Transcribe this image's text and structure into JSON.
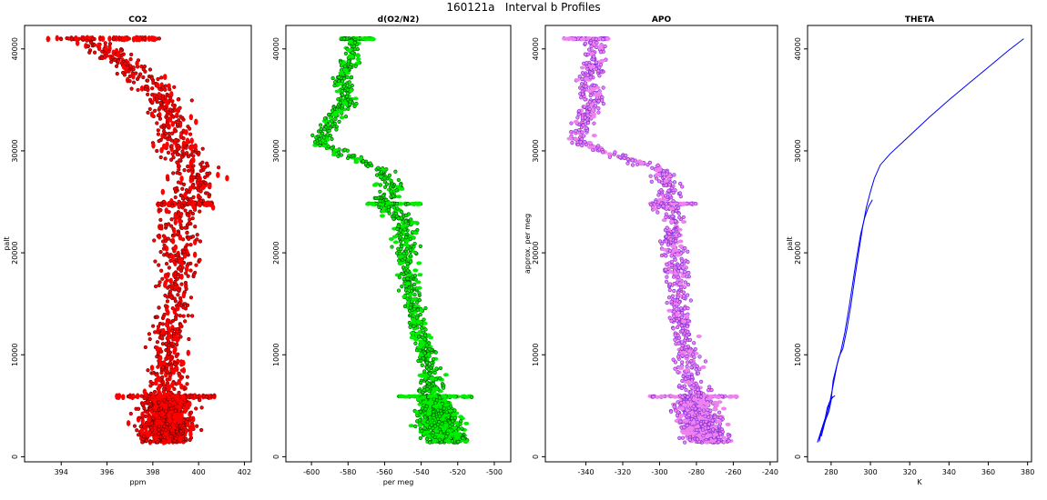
{
  "page_title": "160121a   Interval b Profiles",
  "chart_data": [
    {
      "type": "scatter",
      "title": "CO2",
      "xlabel": "ppm",
      "ylabel": "palt",
      "xlim": [
        392.4,
        402.3
      ],
      "ylim": [
        -500,
        42300
      ],
      "x_ticks": [
        394,
        396,
        398,
        400,
        402
      ],
      "y_ticks": [
        0,
        10000,
        20000,
        30000,
        40000
      ],
      "color": "#ff0000",
      "edge_color": "#6b0000",
      "profile": [
        [
          395.0,
          41000
        ],
        [
          396.5,
          39000
        ],
        [
          397.8,
          37000
        ],
        [
          398.6,
          35000
        ],
        [
          398.8,
          33000
        ],
        [
          399.0,
          31000
        ],
        [
          399.6,
          29000
        ],
        [
          399.8,
          27000
        ],
        [
          399.5,
          25000
        ],
        [
          399.2,
          23000
        ],
        [
          399.0,
          21000
        ],
        [
          399.1,
          19000
        ],
        [
          399.0,
          17000
        ],
        [
          398.9,
          15000
        ],
        [
          398.8,
          13000
        ],
        [
          398.7,
          11000
        ],
        [
          398.6,
          9000
        ],
        [
          398.7,
          7000
        ],
        [
          398.6,
          5000
        ],
        [
          398.6,
          3000
        ],
        [
          398.6,
          1400
        ]
      ],
      "spread": [
        [
          41000,
          0.8
        ],
        [
          35000,
          0.9
        ],
        [
          30000,
          1.0
        ],
        [
          25000,
          1.0
        ],
        [
          15000,
          0.8
        ],
        [
          7000,
          0.8
        ],
        [
          5000,
          1.0
        ],
        [
          1400,
          1.1
        ]
      ],
      "level_lines": [
        {
          "y": 41000,
          "x": [
            393.4,
            398.3
          ]
        },
        {
          "y": 24800,
          "x": [
            398.2,
            400.6
          ]
        },
        {
          "y": 5900,
          "x": [
            396.4,
            400.7
          ]
        }
      ],
      "band": {
        "y": [
          1400,
          6000
        ],
        "n": 900
      }
    },
    {
      "type": "scatter",
      "title": "d(O2/N2)",
      "xlabel": "per meg",
      "ylabel": "",
      "xlim": [
        -614,
        -491
      ],
      "ylim": [
        -500,
        42300
      ],
      "x_ticks": [
        -600,
        -580,
        -560,
        -540,
        -520,
        -500
      ],
      "y_ticks": [
        0,
        10000,
        20000,
        30000,
        40000
      ],
      "color": "#00ee00",
      "edge_color": "#005000",
      "profile": [
        [
          -576,
          41000
        ],
        [
          -578,
          39000
        ],
        [
          -584,
          37000
        ],
        [
          -581,
          35000
        ],
        [
          -588,
          33000
        ],
        [
          -596,
          31000
        ],
        [
          -586,
          30000
        ],
        [
          -560,
          28000
        ],
        [
          -555,
          26000
        ],
        [
          -562,
          25000
        ],
        [
          -548,
          23000
        ],
        [
          -549,
          21000
        ],
        [
          -547,
          19000
        ],
        [
          -546,
          17000
        ],
        [
          -545,
          15000
        ],
        [
          -542,
          13000
        ],
        [
          -539,
          11000
        ],
        [
          -536,
          9000
        ],
        [
          -534,
          7000
        ],
        [
          -532,
          5000
        ],
        [
          -530,
          3000
        ],
        [
          -526,
          1500
        ]
      ],
      "spread": [
        [
          41000,
          5
        ],
        [
          35000,
          5
        ],
        [
          30000,
          6
        ],
        [
          25000,
          7
        ],
        [
          15000,
          5
        ],
        [
          7000,
          6
        ],
        [
          5000,
          9
        ],
        [
          1500,
          12
        ]
      ],
      "level_lines": [
        {
          "y": 41000,
          "x": [
            -584,
            -566
          ]
        },
        {
          "y": 24800,
          "x": [
            -570,
            -540
          ]
        },
        {
          "y": 5900,
          "x": [
            -552,
            -512
          ]
        }
      ],
      "band": {
        "y": [
          1400,
          6000
        ],
        "n": 900
      }
    },
    {
      "type": "scatter",
      "title": "APO",
      "xlabel": "",
      "ylabel": "approx. per meg",
      "xlim": [
        -362,
        -236
      ],
      "ylim": [
        -500,
        42300
      ],
      "x_ticks": [
        -340,
        -320,
        -300,
        -280,
        -260,
        -240
      ],
      "y_ticks": [
        0,
        10000,
        20000,
        30000,
        40000
      ],
      "color": "#ee82ee",
      "edge_color": "#7a2ad8",
      "profile": [
        [
          -335,
          41000
        ],
        [
          -335,
          39000
        ],
        [
          -338,
          37000
        ],
        [
          -336,
          35000
        ],
        [
          -340,
          33000
        ],
        [
          -345,
          31000
        ],
        [
          -330,
          30000
        ],
        [
          -298,
          28000
        ],
        [
          -294,
          26000
        ],
        [
          -298,
          25000
        ],
        [
          -292,
          23000
        ],
        [
          -292,
          21000
        ],
        [
          -291,
          19000
        ],
        [
          -290,
          17000
        ],
        [
          -290,
          15000
        ],
        [
          -288,
          13000
        ],
        [
          -286,
          11000
        ],
        [
          -284,
          9000
        ],
        [
          -282,
          7000
        ],
        [
          -280,
          5000
        ],
        [
          -278,
          3000
        ],
        [
          -274,
          1500
        ]
      ],
      "spread": [
        [
          41000,
          6
        ],
        [
          35000,
          6
        ],
        [
          30000,
          6
        ],
        [
          25000,
          7
        ],
        [
          15000,
          6
        ],
        [
          7000,
          7
        ],
        [
          5000,
          10
        ],
        [
          1500,
          12
        ]
      ],
      "level_lines": [
        {
          "y": 41000,
          "x": [
            -352,
            -328
          ]
        },
        {
          "y": 24800,
          "x": [
            -305,
            -280
          ]
        },
        {
          "y": 5900,
          "x": [
            -305,
            -258
          ]
        }
      ],
      "band": {
        "y": [
          1400,
          6000
        ],
        "n": 900
      }
    },
    {
      "type": "line",
      "title": "THETA",
      "xlabel": "K",
      "ylabel": "palt",
      "xlim": [
        268,
        382
      ],
      "ylim": [
        -500,
        42300
      ],
      "x_ticks": [
        280,
        300,
        320,
        340,
        360,
        380
      ],
      "y_ticks": [
        0,
        10000,
        20000,
        30000,
        40000
      ],
      "color": "#0000ff",
      "series": [
        {
          "x": [
            274,
            275,
            277,
            279,
            280,
            281,
            284,
            286,
            288,
            290,
            292,
            294,
            296,
            298,
            300,
            302,
            305,
            310,
            315,
            320,
            330,
            340,
            350,
            360,
            370,
            378
          ],
          "y": [
            1500,
            2500,
            3500,
            4500,
            5500,
            7500,
            9800,
            10600,
            12500,
            14800,
            17500,
            20000,
            22500,
            24500,
            26000,
            27300,
            28600,
            29700,
            30600,
            31500,
            33300,
            35000,
            36600,
            38200,
            39800,
            41000
          ]
        },
        {
          "x": [
            275,
            277,
            279,
            281,
            283,
            285,
            287,
            289,
            291,
            293,
            295,
            297,
            299,
            301
          ],
          "y": [
            2000,
            3500,
            5000,
            7000,
            9000,
            10400,
            12200,
            14500,
            17000,
            19500,
            21800,
            23400,
            24500,
            25200
          ]
        },
        {
          "x": [
            273,
            275,
            277,
            278,
            280,
            282
          ],
          "y": [
            1400,
            2600,
            3800,
            4800,
            5700,
            6000
          ]
        },
        {
          "x": [
            274,
            276,
            278,
            279,
            281
          ],
          "y": [
            1700,
            3000,
            4200,
            5300,
            5900
          ]
        }
      ]
    }
  ]
}
